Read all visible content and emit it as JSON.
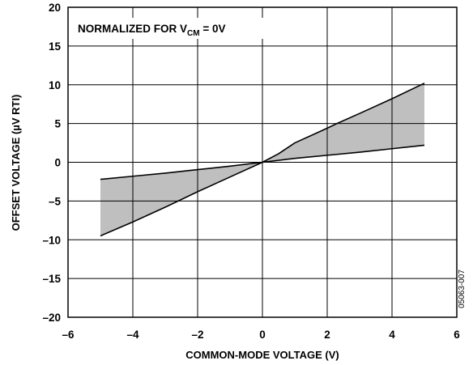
{
  "chart_data": {
    "type": "area",
    "xlabel": "COMMON-MODE VOLTAGE (V)",
    "ylabel": "OFFSET VOLTAGE (µV RTI)",
    "annotation": {
      "prefix": "NORMALIZED FOR V",
      "subscript": "CM",
      "suffix": " = 0V"
    },
    "figure_id": "05063-007",
    "xlim": [
      -6,
      6
    ],
    "ylim": [
      -20,
      20
    ],
    "x_ticks": [
      -6,
      -4,
      -2,
      0,
      2,
      4,
      6
    ],
    "x_tick_labels": [
      "–6",
      "–4",
      "–2",
      "0",
      "2",
      "4",
      "6"
    ],
    "y_ticks": [
      -20,
      -15,
      -10,
      -5,
      0,
      5,
      10,
      15,
      20
    ],
    "y_tick_labels": [
      "–20",
      "–15",
      "–10",
      "–5",
      "0",
      "5",
      "10",
      "15",
      "20"
    ],
    "grid": true,
    "fill_color": "#bfbfbf",
    "line_color": "#000000",
    "series": [
      {
        "x": [
          -5,
          -4,
          -3,
          -2,
          -1,
          0,
          0.5,
          1,
          2,
          2.3,
          3,
          4,
          5
        ],
        "y": [
          -9.5,
          -7.7,
          -5.8,
          -3.8,
          -1.9,
          0,
          1.1,
          2.5,
          4.4,
          5.0,
          6.3,
          8.2,
          10.2
        ]
      },
      {
        "x": [
          -5,
          -4,
          -3,
          -2,
          -1,
          0,
          1,
          2,
          3,
          4,
          5
        ],
        "y": [
          -2.2,
          -1.8,
          -1.4,
          -0.95,
          -0.5,
          0,
          0.5,
          0.9,
          1.3,
          1.75,
          2.2
        ]
      }
    ]
  }
}
